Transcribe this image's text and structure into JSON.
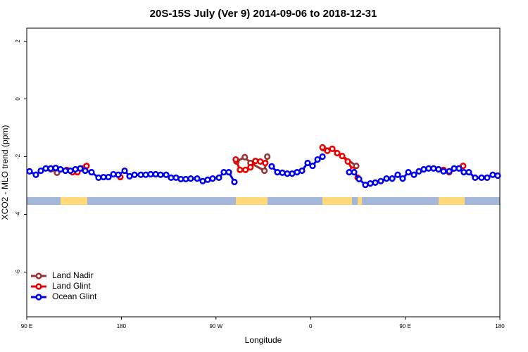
{
  "chart_data": {
    "type": "line",
    "title": "20S-15S July (Ver 9)   2014-09-06 to 2018-12-31",
    "xlabel": "Longitude",
    "ylabel": "XCO2 - MLO trend (ppm)",
    "xlim": [
      90,
      540
    ],
    "ylim": [
      -7.55,
      2.45
    ],
    "xticks": [
      {
        "value": 90,
        "label": "90 E"
      },
      180,
      {
        "value": 270,
        "label": "90 W"
      },
      {
        "value": 360,
        "label": "0"
      },
      {
        "value": 450,
        "label": "90 E"
      },
      {
        "value": 540,
        "label": "180"
      }
    ],
    "yticks": [
      -6,
      -4,
      -2,
      0,
      2
    ],
    "legend": "bottom-left",
    "series": [
      {
        "name": "Land Nadir",
        "color": "#993333",
        "x": [
          112.8,
          118.8,
          null,
          289.4,
          297.4,
          302.8,
          316.1,
          318.8,
          null,
          371.9,
          380.6,
          403.4
        ],
        "values": [
          -2.44,
          -2.56,
          null,
          -2.17,
          -2.02,
          -2.22,
          -2.49,
          -2.0,
          null,
          -1.71,
          -1.73,
          -2.32
        ]
      },
      {
        "name": "Land Glint",
        "color": "#ee0000",
        "x": [
          128.1,
          133.5,
          138.2,
          142.9,
          146.9,
          null,
          179.0,
          null,
          288.8,
          292.8,
          298.1,
          302.8,
          307.5,
          312.2,
          316.9,
          null,
          371.3,
          375.9,
          380.6,
          385.3,
          390.0,
          395.4,
          400.1,
          404.8,
          null,
          486.4,
          491.8,
          501.1,
          505.1
        ],
        "values": [
          -2.46,
          -2.54,
          -2.54,
          -2.41,
          -2.32,
          null,
          -2.71,
          null,
          -2.1,
          -2.46,
          -2.46,
          -2.37,
          -2.15,
          -2.17,
          -2.22,
          null,
          -1.68,
          -1.8,
          -1.73,
          -1.88,
          -1.98,
          -2.17,
          -2.46,
          -2.73,
          null,
          -2.46,
          -2.54,
          -2.41,
          -2.32
        ]
      },
      {
        "name": "Ocean Glint",
        "color": "#0000ee",
        "x": [
          92.7,
          98.7,
          103.4,
          108.1,
          112.8,
          117.5,
          122.1,
          126.8,
          131.5,
          136.2,
          140.9,
          145.6,
          151.6,
          158.3,
          163.0,
          167.7,
          172.4,
          177.0,
          183.1,
          187.8,
          192.5,
          198.5,
          203.2,
          207.9,
          212.6,
          217.3,
          222.6,
          227.3,
          232.0,
          236.6,
          241.3,
          246.0,
          252.1,
          257.4,
          262.1,
          266.8,
          272.8,
          277.5,
          282.2,
          287.5,
          null,
          323.0,
          328.4,
          333.1,
          337.8,
          342.4,
          347.1,
          351.8,
          357.2,
          361.9,
          366.6,
          371.3,
          null,
          396.7,
          401.4,
          406.1,
          412.1,
          416.8,
          421.5,
          426.8,
          432.2,
          437.6,
          442.9,
          447.6,
          453.0,
          458.3,
          463.0,
          467.7,
          472.3,
          477.0,
          481.7,
          486.4,
          491.8,
          496.5,
          501.1,
          505.8,
          510.5,
          516.5,
          522.6,
          527.9,
          533.3,
          538.0
        ],
        "values": [
          -2.51,
          -2.63,
          -2.49,
          -2.41,
          -2.41,
          -2.39,
          -2.44,
          -2.49,
          -2.49,
          -2.44,
          -2.41,
          -2.49,
          -2.54,
          -2.73,
          -2.71,
          -2.71,
          -2.61,
          -2.63,
          -2.49,
          -2.68,
          -2.63,
          -2.63,
          -2.63,
          -2.61,
          -2.61,
          -2.63,
          -2.63,
          -2.73,
          -2.73,
          -2.78,
          -2.78,
          -2.76,
          -2.76,
          -2.85,
          -2.8,
          -2.76,
          -2.73,
          -2.54,
          -2.54,
          -2.88,
          null,
          -2.34,
          -2.54,
          -2.56,
          -2.59,
          -2.59,
          -2.54,
          -2.49,
          -2.22,
          -2.32,
          -2.1,
          -2.0,
          null,
          -2.54,
          -2.54,
          -2.78,
          -2.98,
          -2.93,
          -2.9,
          -2.85,
          -2.76,
          -2.76,
          -2.63,
          -2.76,
          -2.54,
          -2.63,
          -2.51,
          -2.44,
          -2.41,
          -2.41,
          -2.44,
          -2.51,
          -2.51,
          -2.41,
          -2.41,
          -2.54,
          -2.54,
          -2.73,
          -2.73,
          -2.73,
          -2.63,
          -2.66
        ]
      }
    ]
  }
}
